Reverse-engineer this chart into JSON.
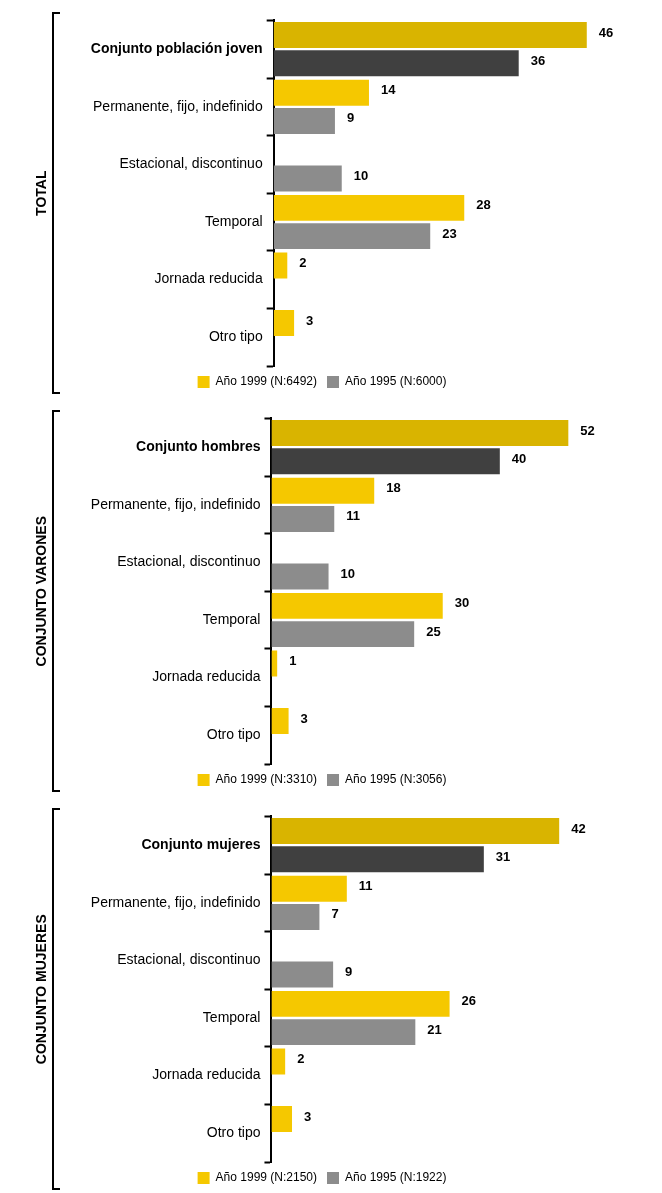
{
  "chart_data": [
    {
      "type": "bar",
      "orientation": "horizontal",
      "ylabel": "TOTAL",
      "categories": [
        "Conjunto población joven",
        "Permanente, fijo, indefinido",
        "Estacional, discontinuo",
        "Temporal",
        "Jornada reducida",
        "Otro tipo"
      ],
      "series": [
        {
          "name": "Año 1999 (N:6492)",
          "color": "#f5c800",
          "colors": [
            "#d9b400",
            "#f5c800",
            "#f5c800",
            "#f5c800",
            "#f5c800",
            "#f5c800"
          ],
          "values": [
            46,
            14,
            null,
            28,
            2,
            3
          ]
        },
        {
          "name": "Año 1995 (N:6000)",
          "color": "#8c8c8c",
          "colors": [
            "#404040",
            "#8c8c8c",
            "#8c8c8c",
            "#8c8c8c",
            "#8c8c8c",
            "#8c8c8c"
          ],
          "values": [
            36,
            9,
            10,
            23,
            null,
            null
          ]
        }
      ],
      "data_labels": true,
      "legend": "bottom",
      "grid": false
    },
    {
      "type": "bar",
      "orientation": "horizontal",
      "ylabel": "CONJUNTO VARONES",
      "categories": [
        "Conjunto hombres",
        "Permanente, fijo, indefinido",
        "Estacional, discontinuo",
        "Temporal",
        "Jornada reducida",
        "Otro tipo"
      ],
      "series": [
        {
          "name": "Año 1999 (N:3310)",
          "color": "#f5c800",
          "colors": [
            "#d9b400",
            "#f5c800",
            "#f5c800",
            "#f5c800",
            "#f5c800",
            "#f5c800"
          ],
          "values": [
            52,
            18,
            null,
            30,
            1,
            3
          ]
        },
        {
          "name": "Año 1995 (N:3056)",
          "color": "#8c8c8c",
          "colors": [
            "#404040",
            "#8c8c8c",
            "#8c8c8c",
            "#8c8c8c",
            "#8c8c8c",
            "#8c8c8c"
          ],
          "values": [
            40,
            11,
            10,
            25,
            null,
            null
          ]
        }
      ],
      "data_labels": true,
      "legend": "bottom",
      "grid": false
    },
    {
      "type": "bar",
      "orientation": "horizontal",
      "ylabel": "CONJUNTO MUJERES",
      "categories": [
        "Conjunto mujeres",
        "Permanente, fijo, indefinido",
        "Estacional, discontinuo",
        "Temporal",
        "Jornada reducida",
        "Otro tipo"
      ],
      "series": [
        {
          "name": "Año 1999 (N:2150)",
          "color": "#f5c800",
          "colors": [
            "#d9b400",
            "#f5c800",
            "#f5c800",
            "#f5c800",
            "#f5c800",
            "#f5c800"
          ],
          "values": [
            42,
            11,
            null,
            26,
            2,
            3
          ]
        },
        {
          "name": "Año 1995 (N:1922)",
          "color": "#8c8c8c",
          "colors": [
            "#404040",
            "#8c8c8c",
            "#8c8c8c",
            "#8c8c8c",
            "#8c8c8c",
            "#8c8c8c"
          ],
          "values": [
            31,
            7,
            9,
            21,
            null,
            null
          ]
        }
      ],
      "data_labels": true,
      "legend": "bottom",
      "grid": false
    }
  ]
}
